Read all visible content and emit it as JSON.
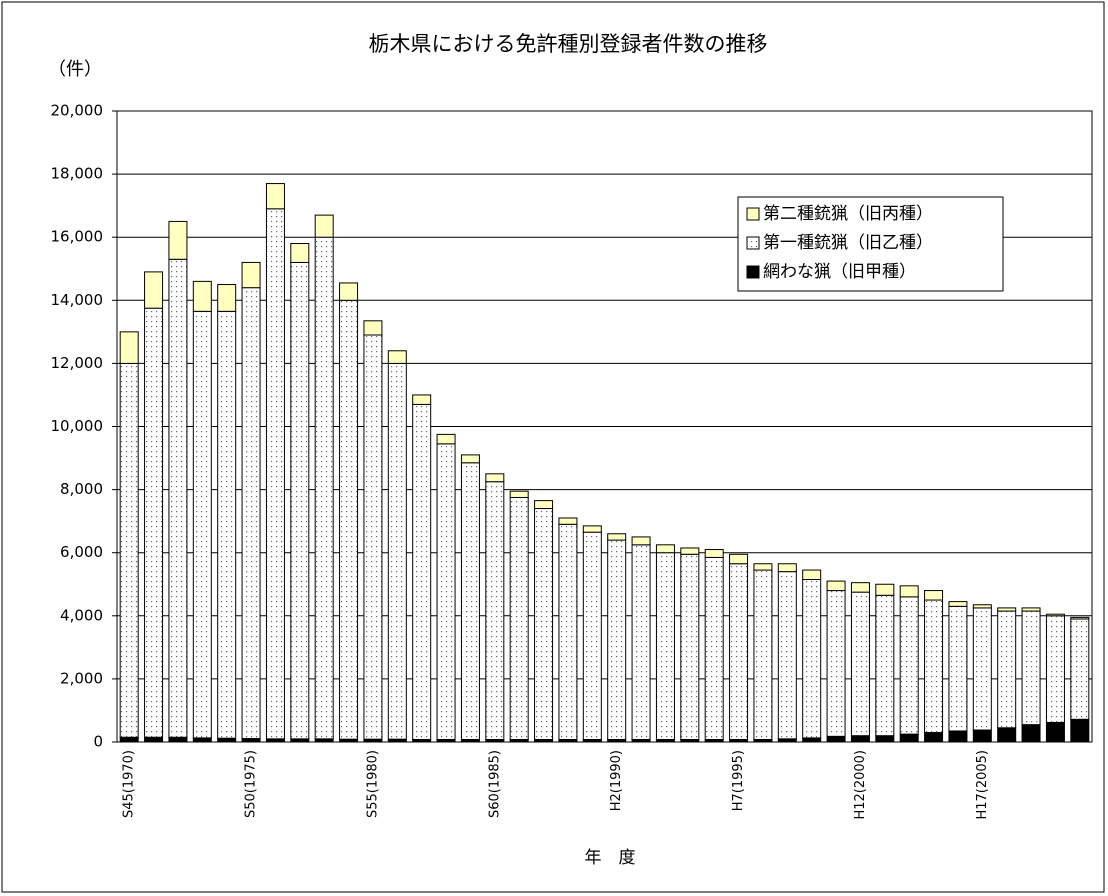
{
  "chart_data": {
    "type": "stacked-bar",
    "title": "栃木県における免許種別登録者件数の推移",
    "y_label": "（件）",
    "x_label": "年　度",
    "categories": [
      "S45(1970)",
      null,
      null,
      null,
      null,
      "S50(1975)",
      null,
      null,
      null,
      null,
      "S55(1980)",
      null,
      null,
      null,
      null,
      "S60(1985)",
      null,
      null,
      null,
      null,
      "H2(1990)",
      null,
      null,
      null,
      null,
      "H7(1995)",
      null,
      null,
      null,
      null,
      "H12(2000)",
      null,
      null,
      null,
      null,
      "H17(2005)",
      null,
      null,
      null,
      null
    ],
    "series": [
      {
        "name": "網わな猟（旧甲種）",
        "color": "#000000",
        "values": [
          150,
          150,
          150,
          130,
          120,
          110,
          100,
          100,
          100,
          90,
          90,
          90,
          80,
          80,
          80,
          80,
          80,
          80,
          80,
          80,
          80,
          80,
          80,
          80,
          80,
          80,
          80,
          100,
          130,
          180,
          200,
          200,
          250,
          300,
          350,
          380,
          450,
          550,
          620,
          720
        ]
      },
      {
        "name": "第一種銃猟（旧乙種）",
        "color": "#ffffff",
        "pattern": "dots",
        "values": [
          11850,
          13600,
          15150,
          13520,
          13530,
          14290,
          16800,
          15100,
          15900,
          13910,
          12810,
          11910,
          10620,
          9370,
          8770,
          8170,
          7670,
          7320,
          6820,
          6570,
          6320,
          6170,
          5920,
          5870,
          5770,
          5570,
          5370,
          5300,
          5020,
          4620,
          4550,
          4450,
          4350,
          4200,
          3950,
          3870,
          3700,
          3600,
          3380,
          3180
        ]
      },
      {
        "name": "第二種銃猟（旧丙種）",
        "color": "#ffffc0",
        "values": [
          1000,
          1150,
          1200,
          950,
          850,
          800,
          800,
          600,
          700,
          550,
          450,
          400,
          300,
          300,
          250,
          250,
          200,
          250,
          200,
          200,
          200,
          250,
          250,
          200,
          250,
          300,
          200,
          250,
          300,
          300,
          300,
          350,
          350,
          300,
          150,
          100,
          100,
          100,
          50,
          50
        ]
      }
    ],
    "ylim": [
      0,
      20000
    ],
    "yticks": [
      0,
      {
        "value": 2000,
        "label": "2,000"
      },
      {
        "value": 4000,
        "label": "4,000"
      },
      {
        "value": 6000,
        "label": "6,000"
      },
      {
        "value": 8000,
        "label": "8,000"
      },
      {
        "value": 10000,
        "label": "10,000"
      },
      {
        "value": 12000,
        "label": "12,000"
      },
      {
        "value": 14000,
        "label": "14,000"
      },
      {
        "value": 16000,
        "label": "16,000"
      },
      {
        "value": 18000,
        "label": "18,000"
      },
      {
        "value": 20000,
        "label": "20,000"
      }
    ],
    "grid": true,
    "legend": "upper-right"
  }
}
